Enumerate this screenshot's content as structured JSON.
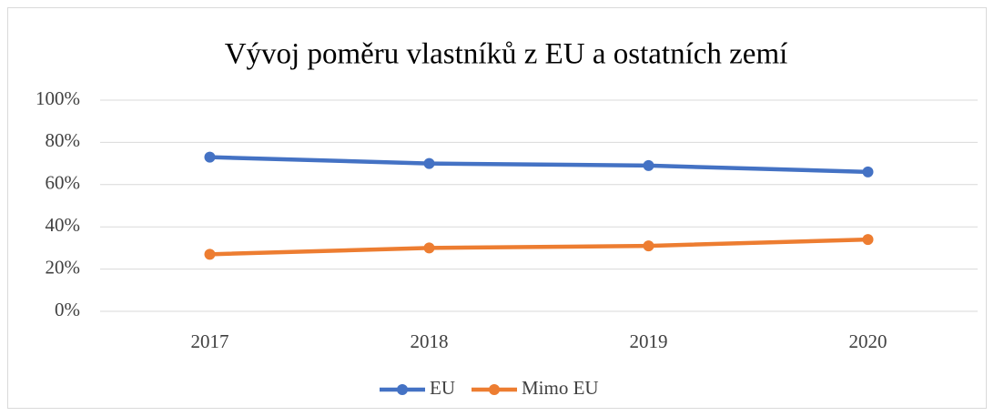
{
  "chart_data": {
    "type": "line",
    "title": "Vývoj poměru vlastníků z EU a ostatních zemí",
    "categories": [
      "2017",
      "2018",
      "2019",
      "2020"
    ],
    "series": [
      {
        "name": "EU",
        "color": "#4472c4",
        "values": [
          73,
          70,
          69,
          66
        ]
      },
      {
        "name": "Mimo EU",
        "color": "#ed7d31",
        "values": [
          27,
          30,
          31,
          34
        ]
      }
    ],
    "ylim": [
      0,
      100
    ],
    "yticks": [
      {
        "value": 0,
        "label": "0%"
      },
      {
        "value": 20,
        "label": "20%"
      },
      {
        "value": 40,
        "label": "40%"
      },
      {
        "value": 60,
        "label": "60%"
      },
      {
        "value": 80,
        "label": "80%"
      },
      {
        "value": 100,
        "label": "100%"
      }
    ],
    "grid": true,
    "legend": "bottom"
  }
}
